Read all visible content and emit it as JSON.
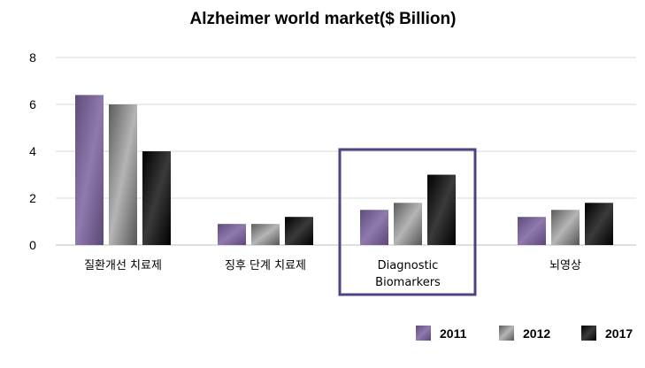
{
  "chart_data": {
    "type": "bar",
    "title": "Alzheimer world market($ Billion)",
    "categories": [
      "질환개선 치료제",
      "징후 단계 치료제",
      "Diagnostic Biomarkers",
      "뇌영상"
    ],
    "series": [
      {
        "name": "2011",
        "values": [
          6.4,
          0.9,
          1.5,
          1.2
        ]
      },
      {
        "name": "2012",
        "values": [
          6.0,
          0.9,
          1.8,
          1.5
        ]
      },
      {
        "name": "2017",
        "values": [
          4.0,
          1.2,
          3.0,
          1.8
        ]
      }
    ],
    "ylim": [
      0,
      8
    ],
    "yticks": [
      0,
      2,
      4,
      6,
      8
    ],
    "xlabel": "",
    "ylabel": "",
    "grid": true,
    "legend_position": "bottom-right",
    "highlighted_category": "Diagnostic Biomarkers",
    "colors": {
      "series": [
        "#7b6597",
        "#8c8c8c",
        "#111111"
      ],
      "highlight_box": "#4b4585",
      "gridline": "#d9d9d9"
    }
  }
}
